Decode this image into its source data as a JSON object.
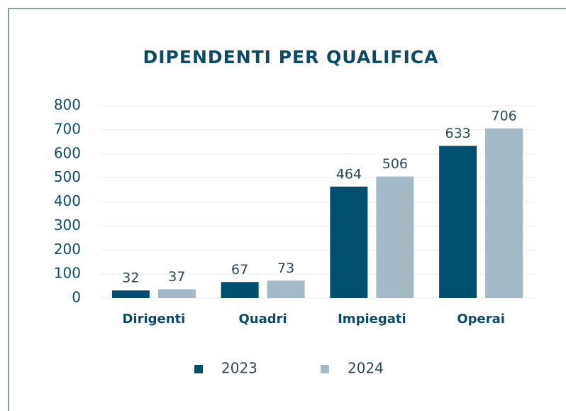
{
  "chart_data": {
    "type": "bar",
    "title": "DIPENDENTI PER QUALIFICA",
    "categories": [
      "Dirigenti",
      "Quadri",
      "Impiegati",
      "Operai"
    ],
    "series": [
      {
        "name": "2023",
        "color": "#004f6e",
        "values": [
          32,
          67,
          464,
          633
        ]
      },
      {
        "name": "2024",
        "color": "#a3b9c5",
        "values": [
          37,
          73,
          506,
          706
        ]
      }
    ],
    "ylim": [
      0,
      800
    ],
    "yticks": [
      0,
      100,
      200,
      300,
      400,
      500,
      600,
      700,
      800
    ],
    "grid": true,
    "legend": "bottom"
  }
}
